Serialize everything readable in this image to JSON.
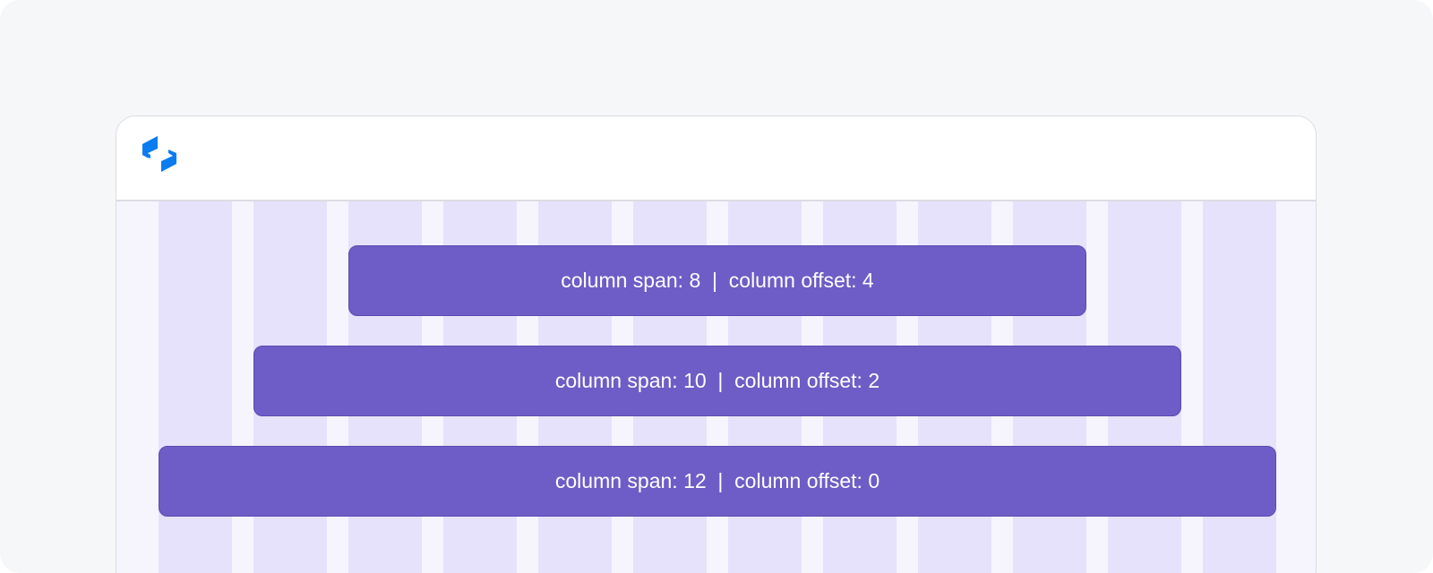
{
  "header": {
    "logo_icon": "brand-logo-icon",
    "logo_color": "#0a7cf0"
  },
  "grid": {
    "columns": 12,
    "column_color": "#e6e2fb",
    "gutter_color": "#f6f5fe"
  },
  "rows": [
    {
      "label": "column span: 8  |  column offset: 4",
      "span": 8,
      "offset": 4
    },
    {
      "label": "column span: 10  |  column offset: 2",
      "span": 10,
      "offset": 2
    },
    {
      "label": "column span: 12  |  column offset: 0",
      "span": 12,
      "offset": 0
    }
  ],
  "bar_color": "#6e5dc6"
}
